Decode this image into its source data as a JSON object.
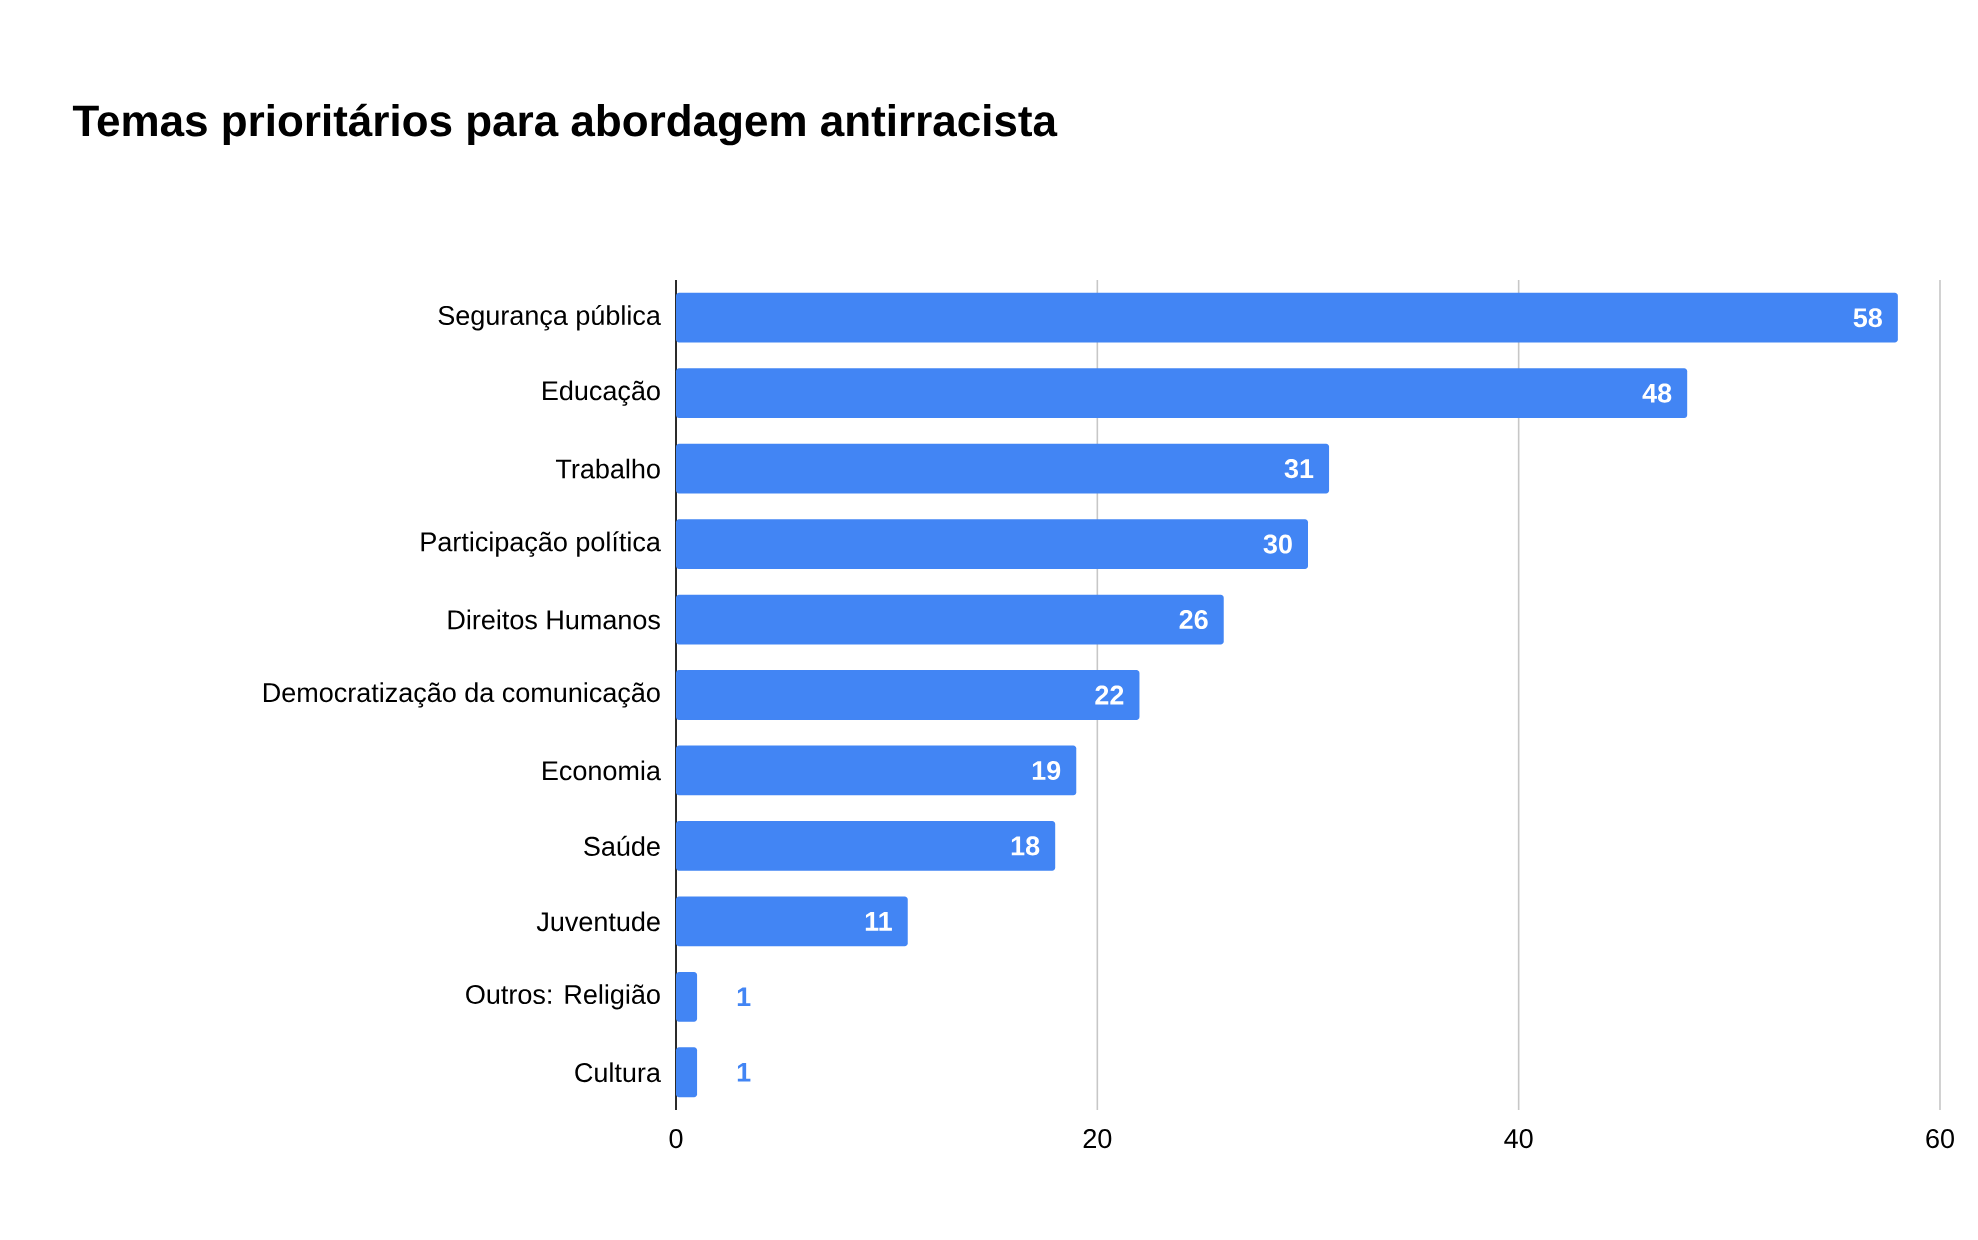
{
  "chart_data": {
    "type": "bar",
    "orientation": "horizontal",
    "title": "Temas prioritários para abordagem antirracista",
    "categories": [
      "Segurança pública",
      "Educação",
      "Trabalho",
      "Participação política",
      "Direitos Humanos",
      "Democratização da comunicação",
      "Economia",
      "Saúde",
      "Juventude",
      "Outros: Religião",
      "Cultura"
    ],
    "values": [
      58,
      48,
      31,
      30,
      26,
      22,
      19,
      18,
      11,
      1,
      1
    ],
    "color": "#4285f4",
    "xlim": [
      0,
      60
    ],
    "xticks": [
      0,
      20,
      40,
      60
    ],
    "grid": "x",
    "data_labels": true
  }
}
